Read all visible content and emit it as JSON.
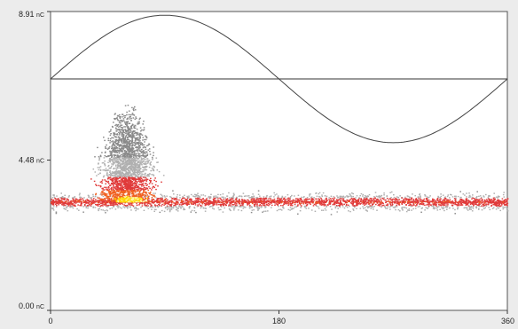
{
  "chart_data": {
    "type": "heatmap",
    "title": "",
    "xlabel": "",
    "ylabel": "",
    "xlim": [
      0,
      360
    ],
    "ylim": [
      0,
      8.91
    ],
    "x_ticks": [
      {
        "value": 0,
        "label": "0"
      },
      {
        "value": 180,
        "label": "180"
      },
      {
        "value": 360,
        "label": "360"
      }
    ],
    "y_ticks": [
      {
        "value": 0,
        "label": "0.00",
        "unit": "nC"
      },
      {
        "value": 4.48,
        "label": "4.48",
        "unit": "nC"
      },
      {
        "value": 8.91,
        "label": "8.91",
        "unit": "nC"
      }
    ],
    "reference_line": {
      "y": 6.9
    },
    "sine_wave": {
      "amplitude": 1.9,
      "offset": 6.9,
      "period_deg": 360,
      "points": [
        {
          "x": 0,
          "y": 6.9
        },
        {
          "x": 45,
          "y": 8.24
        },
        {
          "x": 90,
          "y": 8.8
        },
        {
          "x": 135,
          "y": 8.24
        },
        {
          "x": 180,
          "y": 6.9
        },
        {
          "x": 225,
          "y": 5.56
        },
        {
          "x": 270,
          "y": 5.0
        },
        {
          "x": 315,
          "y": 5.56
        },
        {
          "x": 360,
          "y": 6.9
        }
      ]
    },
    "baseline_band": {
      "y_center": 3.25,
      "y_low": 2.9,
      "y_high": 3.8
    },
    "discharge_cluster": {
      "x_center": 60,
      "x_spread": 40,
      "y_peak": 6.2
    },
    "color_scale": [
      "#8a8a8a",
      "#b0b0b0",
      "#e03a3a",
      "#f06020",
      "#ffd800",
      "#fff8b0"
    ],
    "grid": false,
    "legend": "none"
  }
}
